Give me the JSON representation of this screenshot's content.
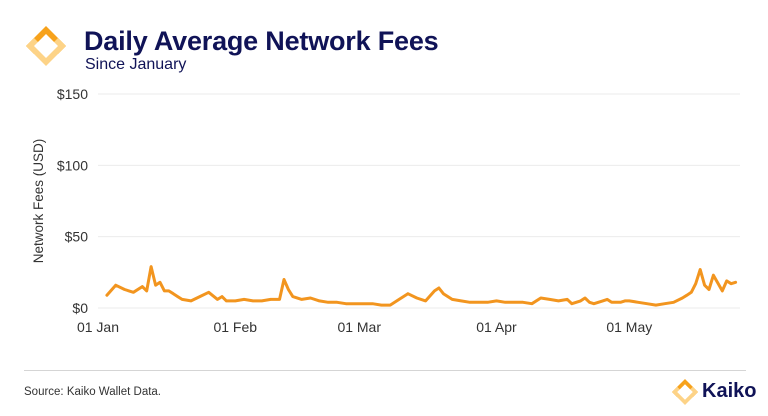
{
  "header": {
    "title": "Daily Average Network Fees",
    "subtitle": "Since January"
  },
  "footer": {
    "source": "Source: Kaiko Wallet Data.",
    "brand": "Kaiko"
  },
  "colors": {
    "line": "#F2951F",
    "title": "#101357",
    "logo_orange": "#F7A21B",
    "logo_light": "#FDD387"
  },
  "icons": {
    "brand": "kaiko-logo-icon"
  },
  "chart_data": {
    "type": "line",
    "title": "Daily Average Network Fees",
    "subtitle": "Since January",
    "ylabel": "Network Fees (USD)",
    "xlabel": "",
    "ylim": [
      0,
      150
    ],
    "yticks": [
      0,
      50,
      100,
      150
    ],
    "ytick_labels": [
      "$0",
      "$50",
      "$100",
      "$150"
    ],
    "xlim": [
      "2022-01-01",
      "2022-05-26"
    ],
    "xticks": [
      "2022-01-01",
      "2022-02-01",
      "2022-03-01",
      "2022-04-01",
      "2022-05-01"
    ],
    "xtick_labels": [
      "01 Jan",
      "01 Feb",
      "01 Mar",
      "01 Apr",
      "01 May"
    ],
    "grid": true,
    "legend": "none",
    "series": [
      {
        "x": [
          "2022-01-03",
          "2022-01-05",
          "2022-01-07",
          "2022-01-09",
          "2022-01-11",
          "2022-01-12",
          "2022-01-13",
          "2022-01-14",
          "2022-01-15",
          "2022-01-16",
          "2022-01-17",
          "2022-01-18",
          "2022-01-19",
          "2022-01-20",
          "2022-01-22",
          "2022-01-24",
          "2022-01-26",
          "2022-01-28",
          "2022-01-29",
          "2022-01-30",
          "2022-02-01",
          "2022-02-03",
          "2022-02-05",
          "2022-02-07",
          "2022-02-09",
          "2022-02-11",
          "2022-02-12",
          "2022-02-13",
          "2022-02-14",
          "2022-02-16",
          "2022-02-18",
          "2022-02-20",
          "2022-02-22",
          "2022-02-24",
          "2022-02-26",
          "2022-02-28",
          "2022-03-02",
          "2022-03-04",
          "2022-03-06",
          "2022-03-08",
          "2022-03-10",
          "2022-03-12",
          "2022-03-14",
          "2022-03-16",
          "2022-03-18",
          "2022-03-19",
          "2022-03-20",
          "2022-03-22",
          "2022-03-24",
          "2022-03-26",
          "2022-03-28",
          "2022-03-30",
          "2022-04-01",
          "2022-04-03",
          "2022-04-05",
          "2022-04-07",
          "2022-04-09",
          "2022-04-11",
          "2022-04-13",
          "2022-04-15",
          "2022-04-17",
          "2022-04-18",
          "2022-04-19",
          "2022-04-20",
          "2022-04-21",
          "2022-04-22",
          "2022-04-23",
          "2022-04-24",
          "2022-04-25",
          "2022-04-26",
          "2022-04-27",
          "2022-04-28",
          "2022-04-29",
          "2022-04-30",
          "2022-05-01",
          "2022-05-03",
          "2022-05-05",
          "2022-05-07",
          "2022-05-09",
          "2022-05-11",
          "2022-05-13",
          "2022-05-14",
          "2022-05-15",
          "2022-05-16",
          "2022-05-17",
          "2022-05-18",
          "2022-05-19",
          "2022-05-20",
          "2022-05-22",
          "2022-05-23",
          "2022-05-24",
          "2022-05-25"
        ],
        "values": [
          9,
          16,
          13,
          11,
          15,
          12,
          29,
          16,
          18,
          12,
          12,
          10,
          8,
          6,
          5,
          8,
          11,
          6,
          8,
          5,
          5,
          6,
          5,
          5,
          6,
          6,
          20,
          13,
          8,
          6,
          7,
          5,
          4,
          4,
          3,
          3,
          3,
          3,
          2,
          2,
          6,
          10,
          7,
          5,
          12,
          14,
          10,
          6,
          5,
          4,
          4,
          4,
          5,
          4,
          4,
          4,
          3,
          7,
          6,
          5,
          6,
          3,
          4,
          5,
          7,
          4,
          3,
          4,
          5,
          6,
          4,
          4,
          4,
          5,
          5,
          4,
          3,
          2,
          3,
          4,
          7,
          9,
          11,
          17,
          27,
          16,
          13,
          23,
          12,
          19,
          17,
          18
        ]
      }
    ]
  }
}
